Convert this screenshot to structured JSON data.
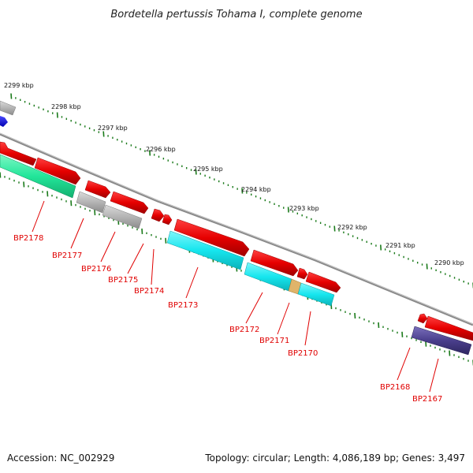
{
  "title": "Bordetella pertussis Tohama I, complete genome",
  "footer": {
    "accession": "Accession: NC_002929",
    "summary": "Topology: circular; Length: 4,086,189 bp; Genes: 3,497"
  },
  "scale_labels": [
    "2299 kbp",
    "2298 kbp",
    "2297 kbp",
    "2296 kbp",
    "2295 kbp",
    "2294 kbp",
    "2293 kbp",
    "2292 kbp",
    "2291 kbp",
    "2290 kbp"
  ],
  "gene_labels": [
    "BP2178",
    "BP2177",
    "BP2176",
    "BP2175",
    "BP2174",
    "BP2173",
    "BP2172",
    "BP2171",
    "BP2170",
    "BP2168",
    "BP2167"
  ],
  "colors": {
    "backbone": "#8a8a8a",
    "scale_tick": "#1a7a1a",
    "label_red": "#e00000",
    "cds_red": "#e60000",
    "cds_gray": "#b4b4b4",
    "cds_blue": "#0000e0",
    "cds_green": "#22e69a",
    "cds_cyan": "#16e6ee",
    "cds_orange": "#e0b46a",
    "cds_navy": "#4a3f8c"
  }
}
